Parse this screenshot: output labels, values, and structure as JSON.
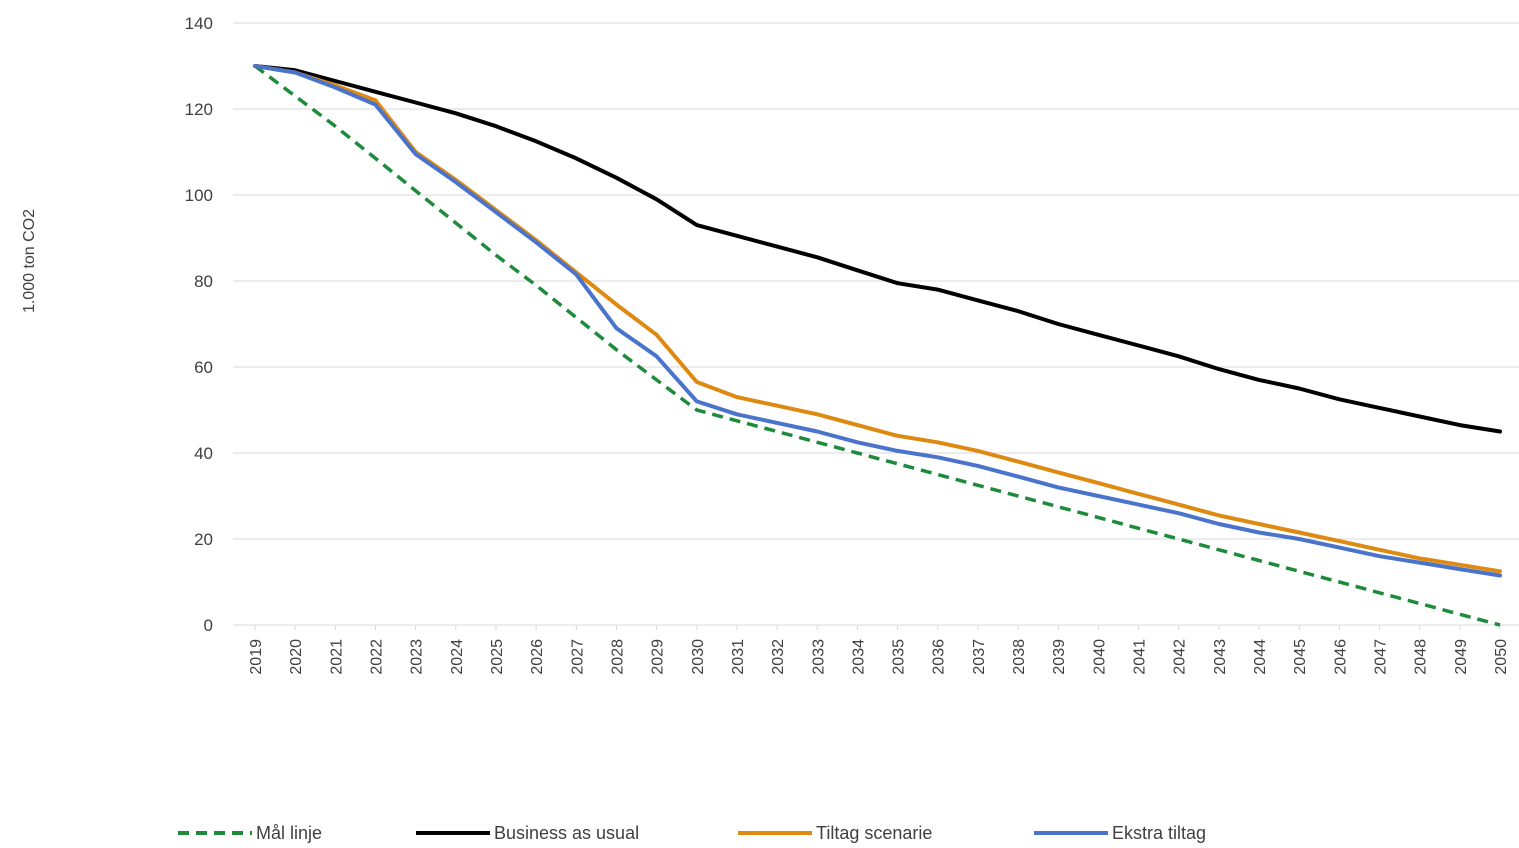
{
  "chart_data": {
    "type": "line",
    "title": "",
    "xlabel": "",
    "ylabel": "1.000 ton CO2",
    "ylim": [
      0,
      140
    ],
    "yticks": [
      0,
      20,
      40,
      60,
      80,
      100,
      120,
      140
    ],
    "grid": "horizontal",
    "legend_position": "bottom",
    "categories": [
      "2019",
      "2020",
      "2021",
      "2022",
      "2023",
      "2024",
      "2025",
      "2026",
      "2027",
      "2028",
      "2029",
      "2030",
      "2031",
      "2032",
      "2033",
      "2034",
      "2035",
      "2036",
      "2037",
      "2038",
      "2039",
      "2040",
      "2041",
      "2042",
      "2043",
      "2044",
      "2045",
      "2046",
      "2047",
      "2048",
      "2049",
      "2050"
    ],
    "series": [
      {
        "name": "Mål linje",
        "color": "#1e8a3c",
        "dash": "dashed",
        "values": [
          130,
          123,
          116,
          108.5,
          101,
          93.5,
          86,
          79,
          71.5,
          64,
          57,
          50,
          47.5,
          45,
          42.5,
          40,
          37.5,
          35,
          32.5,
          30,
          27.5,
          25,
          22.5,
          20,
          17.5,
          15,
          12.5,
          10,
          7.5,
          5,
          2.5,
          0
        ]
      },
      {
        "name": "Business as usual",
        "color": "#000000",
        "dash": "solid",
        "values": [
          130,
          129,
          126.5,
          124,
          121.5,
          119,
          116,
          112.5,
          108.5,
          104,
          99,
          93,
          90.5,
          88,
          85.5,
          82.5,
          79.5,
          78,
          75.5,
          73,
          70,
          67.5,
          65,
          62.5,
          59.5,
          57,
          55,
          52.5,
          50.5,
          48.5,
          46.5,
          45
        ]
      },
      {
        "name": "Tiltag scenarie",
        "color": "#de8a12",
        "dash": "solid",
        "values": [
          130,
          128.5,
          125.5,
          122,
          110,
          103.5,
          96.5,
          89.5,
          82,
          74.5,
          67.5,
          56.5,
          53,
          51,
          49,
          46.5,
          44,
          42.5,
          40.5,
          38,
          35.5,
          33,
          30.5,
          28,
          25.5,
          23.5,
          21.5,
          19.5,
          17.5,
          15.5,
          14,
          12.5
        ]
      },
      {
        "name": "Ekstra tiltag",
        "color": "#4a73cb",
        "dash": "solid",
        "values": [
          130,
          128.5,
          125,
          121,
          109.5,
          103,
          96,
          89,
          81.5,
          69,
          62.5,
          52,
          49,
          47,
          45,
          42.5,
          40.5,
          39,
          37,
          34.5,
          32,
          30,
          28,
          26,
          23.5,
          21.5,
          20,
          18,
          16,
          14.5,
          13,
          11.5
        ]
      }
    ]
  }
}
